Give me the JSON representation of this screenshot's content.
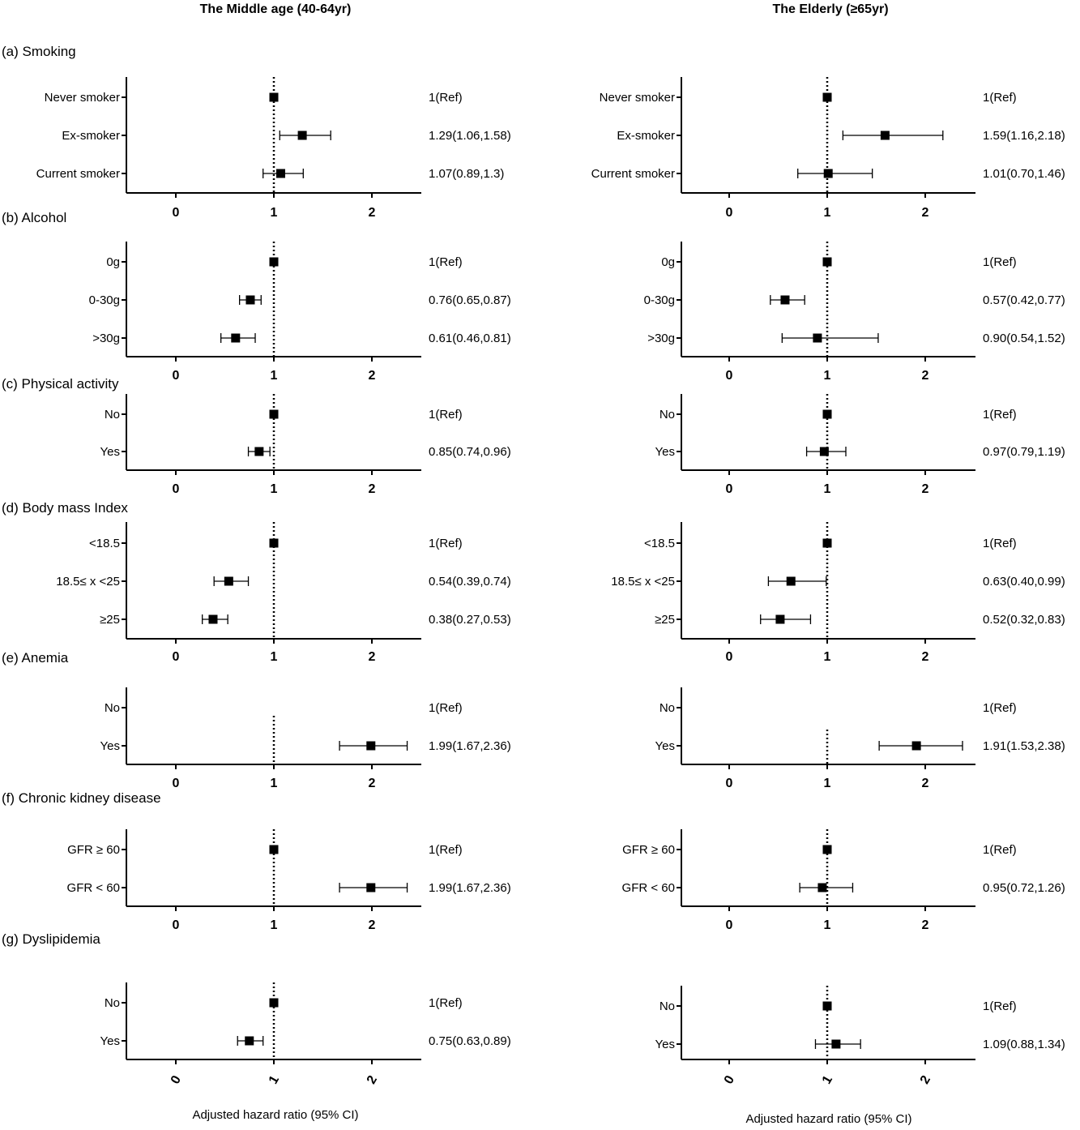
{
  "chart_data": {
    "type": "forest",
    "xlabel": "Adjusted hazard ratio (95% CI)",
    "xlim": [
      -0.5,
      2.5
    ],
    "ticks": [
      0,
      1,
      2
    ],
    "reference_line": 1,
    "groups": [
      {
        "name": "The Middle age (40-64yr)",
        "xlabel": "Adjusted hazard ratio (95% CI)"
      },
      {
        "name": "The Elderly (≥65yr)",
        "xlabel": "Adjusted hazard ratio (95% CI)"
      }
    ],
    "sections": [
      {
        "title": "(a) Smoking",
        "rows": [
          {
            "label": "Never smoker",
            "values": [
              {
                "hr": 1,
                "lo": 1,
                "hi": 1,
                "text": "1(Ref)"
              },
              {
                "hr": 1,
                "lo": 1,
                "hi": 1,
                "text": "1(Ref)"
              }
            ]
          },
          {
            "label": "Ex-smoker",
            "values": [
              {
                "hr": 1.29,
                "lo": 1.06,
                "hi": 1.58,
                "text": "1.29(1.06,1.58)"
              },
              {
                "hr": 1.59,
                "lo": 1.16,
                "hi": 2.18,
                "text": "1.59(1.16,2.18)"
              }
            ]
          },
          {
            "label": "Current smoker",
            "values": [
              {
                "hr": 1.07,
                "lo": 0.89,
                "hi": 1.3,
                "text": "1.07(0.89,1.3)"
              },
              {
                "hr": 1.01,
                "lo": 0.7,
                "hi": 1.46,
                "text": "1.01(0.70,1.46)"
              }
            ]
          }
        ]
      },
      {
        "title": "(b) Alcohol",
        "rows": [
          {
            "label": "0g",
            "values": [
              {
                "hr": 1,
                "lo": 1,
                "hi": 1,
                "text": "1(Ref)"
              },
              {
                "hr": 1,
                "lo": 1,
                "hi": 1,
                "text": "1(Ref)"
              }
            ]
          },
          {
            "label": "0-30g",
            "values": [
              {
                "hr": 0.76,
                "lo": 0.65,
                "hi": 0.87,
                "text": "0.76(0.65,0.87)"
              },
              {
                "hr": 0.57,
                "lo": 0.42,
                "hi": 0.77,
                "text": "0.57(0.42,0.77)"
              }
            ]
          },
          {
            "label": ">30g",
            "values": [
              {
                "hr": 0.61,
                "lo": 0.46,
                "hi": 0.81,
                "text": "0.61(0.46,0.81)"
              },
              {
                "hr": 0.9,
                "lo": 0.54,
                "hi": 1.52,
                "text": "0.90(0.54,1.52)"
              }
            ]
          }
        ]
      },
      {
        "title": "(c) Physical activity",
        "rows": [
          {
            "label": "No",
            "values": [
              {
                "hr": 1,
                "lo": 1,
                "hi": 1,
                "text": "1(Ref)"
              },
              {
                "hr": 1,
                "lo": 1,
                "hi": 1,
                "text": "1(Ref)"
              }
            ]
          },
          {
            "label": "Yes",
            "values": [
              {
                "hr": 0.85,
                "lo": 0.74,
                "hi": 0.96,
                "text": "0.85(0.74,0.96)"
              },
              {
                "hr": 0.97,
                "lo": 0.79,
                "hi": 1.19,
                "text": "0.97(0.79,1.19)"
              }
            ]
          }
        ]
      },
      {
        "title": "(d) Body mass Index",
        "rows": [
          {
            "label": "<18.5",
            "values": [
              {
                "hr": 1,
                "lo": 1,
                "hi": 1,
                "text": "1(Ref)"
              },
              {
                "hr": 1,
                "lo": 1,
                "hi": 1,
                "text": "1(Ref)"
              }
            ]
          },
          {
            "label": "18.5≤ x <25",
            "values": [
              {
                "hr": 0.54,
                "lo": 0.39,
                "hi": 0.74,
                "text": "0.54(0.39,0.74)"
              },
              {
                "hr": 0.63,
                "lo": 0.4,
                "hi": 0.99,
                "text": "0.63(0.40,0.99)"
              }
            ]
          },
          {
            "label": "≥25",
            "values": [
              {
                "hr": 0.38,
                "lo": 0.27,
                "hi": 0.53,
                "text": "0.38(0.27,0.53)"
              },
              {
                "hr": 0.52,
                "lo": 0.32,
                "hi": 0.83,
                "text": "0.52(0.32,0.83)"
              }
            ]
          }
        ]
      },
      {
        "title": "(e) Anemia",
        "rows": [
          {
            "label": "No",
            "values": [
              {
                "hr": null,
                "lo": null,
                "hi": null,
                "text": "1(Ref)"
              },
              {
                "hr": null,
                "lo": null,
                "hi": null,
                "text": "1(Ref)"
              }
            ]
          },
          {
            "label": "Yes",
            "values": [
              {
                "hr": 1.99,
                "lo": 1.67,
                "hi": 2.36,
                "text": "1.99(1.67,2.36)"
              },
              {
                "hr": 1.91,
                "lo": 1.53,
                "hi": 2.38,
                "text": "1.91(1.53,2.38)"
              }
            ]
          }
        ]
      },
      {
        "title": "(f) Chronic kidney disease",
        "rows": [
          {
            "label": "GFR ≥ 60",
            "values": [
              {
                "hr": 1,
                "lo": 1,
                "hi": 1,
                "text": "1(Ref)"
              },
              {
                "hr": 1,
                "lo": 1,
                "hi": 1,
                "text": "1(Ref)"
              }
            ]
          },
          {
            "label": "GFR < 60",
            "values": [
              {
                "hr": 1.99,
                "lo": 1.67,
                "hi": 2.36,
                "text": "1.99(1.67,2.36)"
              },
              {
                "hr": 0.95,
                "lo": 0.72,
                "hi": 1.26,
                "text": "0.95(0.72,1.26)"
              }
            ]
          }
        ]
      },
      {
        "title": "(g) Dyslipidemia",
        "rows": [
          {
            "label": "No",
            "values": [
              {
                "hr": 1,
                "lo": 1,
                "hi": 1,
                "text": "1(Ref)"
              },
              {
                "hr": 1,
                "lo": 1,
                "hi": 1,
                "text": "1(Ref)"
              }
            ]
          },
          {
            "label": "Yes",
            "values": [
              {
                "hr": 0.75,
                "lo": 0.63,
                "hi": 0.89,
                "text": "0.75(0.63,0.89)"
              },
              {
                "hr": 1.09,
                "lo": 0.88,
                "hi": 1.34,
                "text": "1.09(0.88,1.34)"
              }
            ]
          }
        ]
      }
    ]
  }
}
